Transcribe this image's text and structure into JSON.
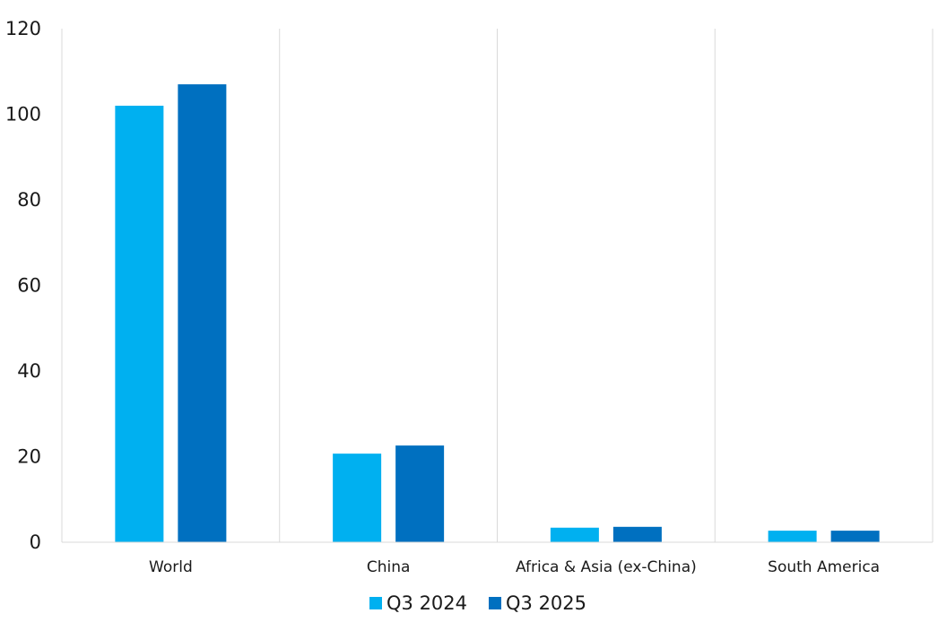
{
  "chart_data": {
    "type": "bar",
    "title": "",
    "xlabel": "",
    "ylabel": "",
    "categories": [
      "World",
      "China",
      "Africa & Asia (ex-China)",
      "South America"
    ],
    "series": [
      {
        "name": "Q3 2024",
        "color": "#00b0f0",
        "values": [
          102,
          20.7,
          3.4,
          2.7
        ]
      },
      {
        "name": "Q3 2025",
        "color": "#0070c0",
        "values": [
          107,
          22.6,
          3.6,
          2.7
        ]
      }
    ],
    "ylim": [
      0,
      120
    ],
    "yticks": [
      0,
      20,
      40,
      60,
      80,
      100,
      120
    ],
    "grid": "vertical category separators",
    "legend": "bottom-center"
  }
}
